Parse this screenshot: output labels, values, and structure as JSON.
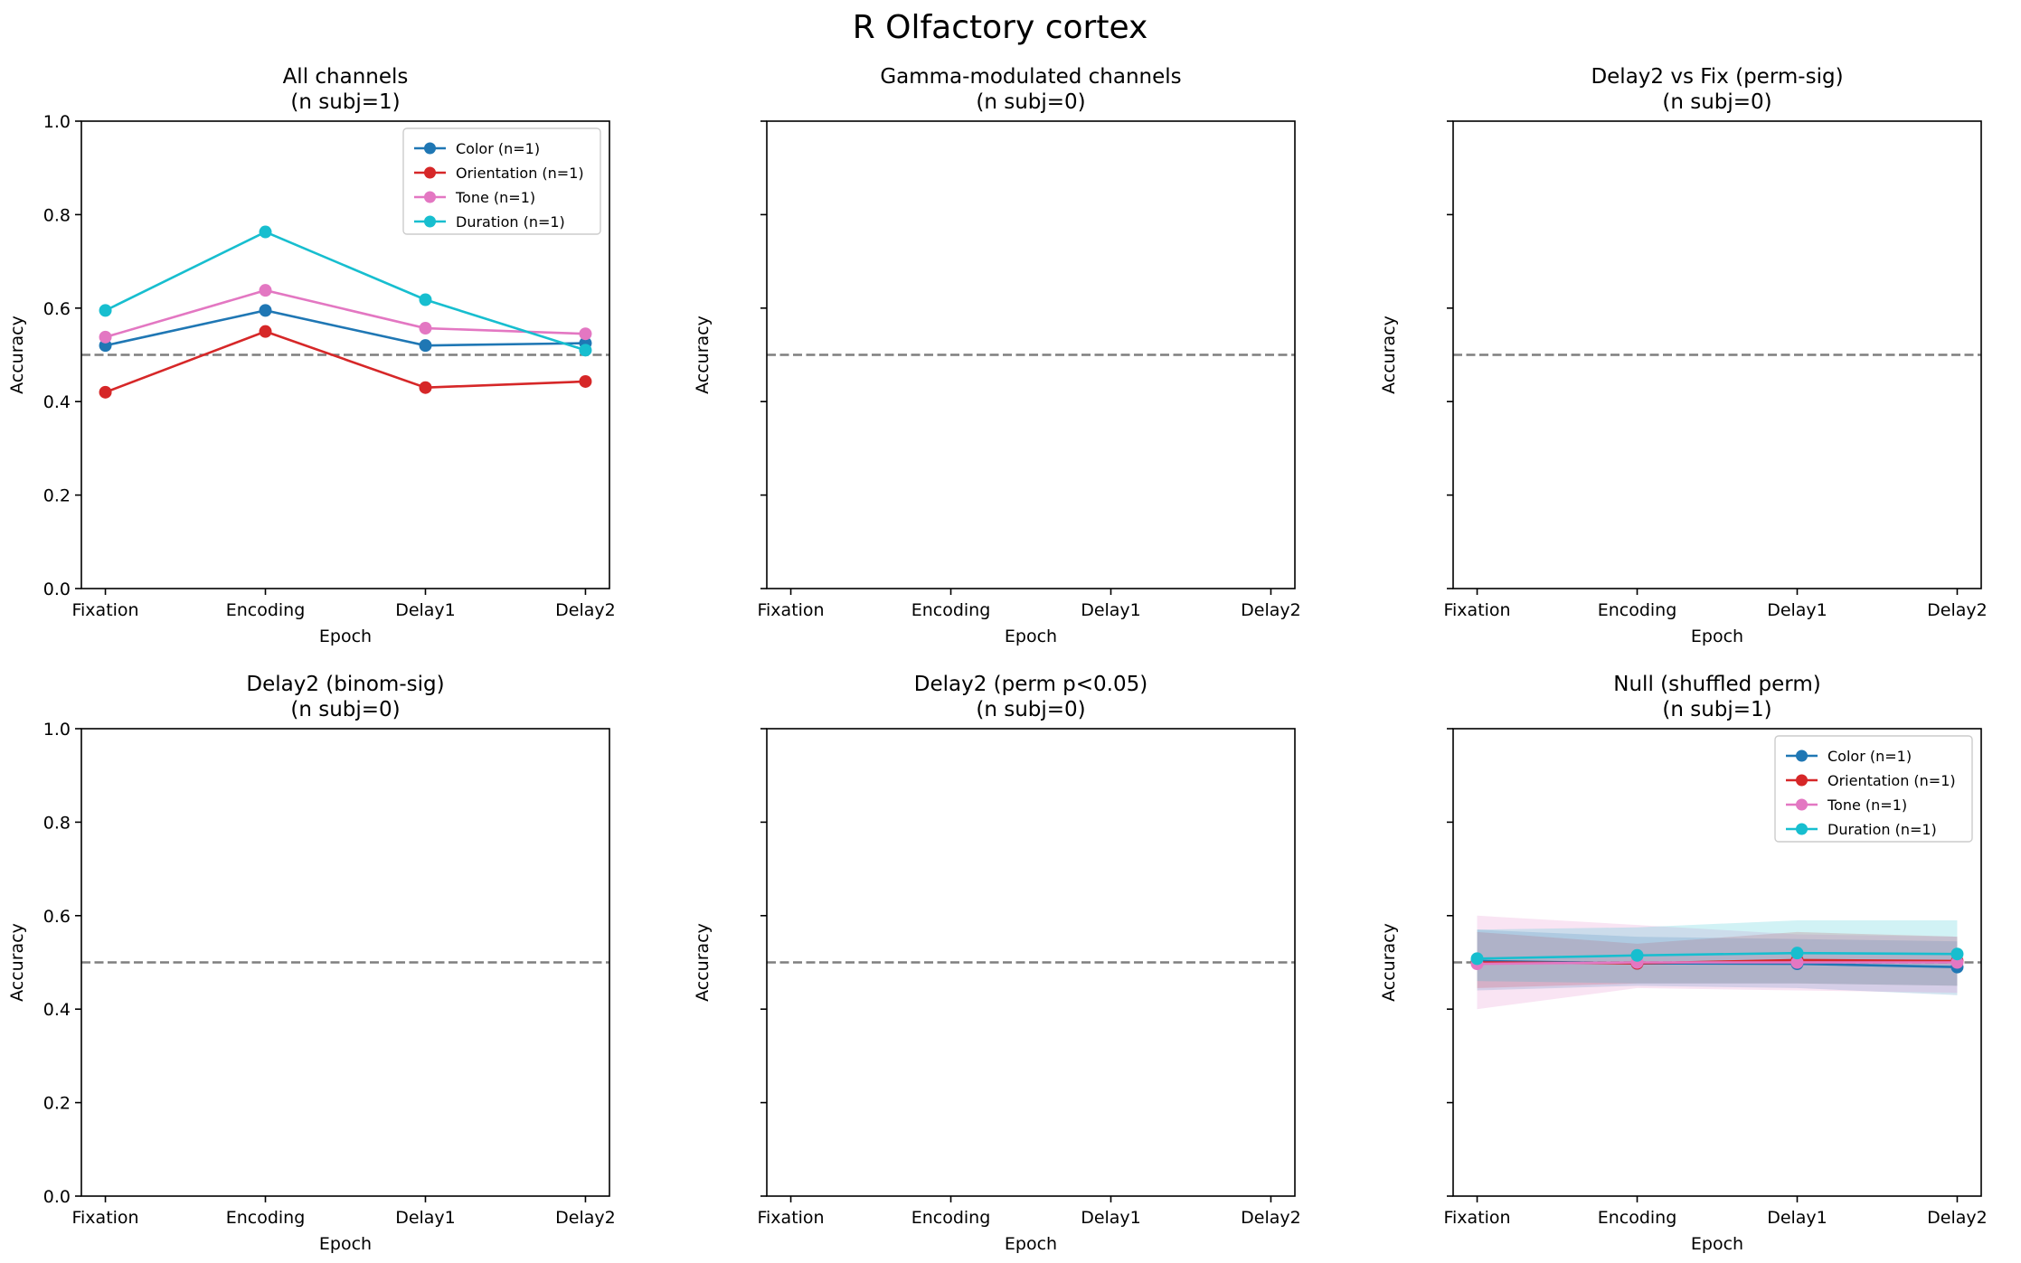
{
  "figure": {
    "title": "R Olfactory cortex"
  },
  "chart_data": [
    {
      "type": "line",
      "title": "All channels",
      "subtitle": "(n subj=1)",
      "xlabel": "Epoch",
      "ylabel": "Accuracy",
      "categories": [
        "Fixation",
        "Encoding",
        "Delay1",
        "Delay2"
      ],
      "ylim": [
        0,
        1
      ],
      "yticks": [
        "0.0",
        "0.2",
        "0.4",
        "0.6",
        "0.8",
        "1.0"
      ],
      "show_ytick_labels": true,
      "chance": 0.5,
      "legend": "upper-right",
      "series": [
        {
          "name": "Color (n=1)",
          "color": "#1f77b4",
          "values": [
            0.52,
            0.595,
            0.52,
            0.525
          ]
        },
        {
          "name": "Orientation (n=1)",
          "color": "#d62728",
          "values": [
            0.42,
            0.55,
            0.43,
            0.443
          ]
        },
        {
          "name": "Tone (n=1)",
          "color": "#e377c2",
          "values": [
            0.538,
            0.638,
            0.557,
            0.545
          ]
        },
        {
          "name": "Duration (n=1)",
          "color": "#17becf",
          "values": [
            0.595,
            0.763,
            0.618,
            0.51
          ]
        }
      ]
    },
    {
      "type": "line",
      "title": "Gamma-modulated channels",
      "subtitle": "(n subj=0)",
      "xlabel": "Epoch",
      "ylabel": "Accuracy",
      "categories": [
        "Fixation",
        "Encoding",
        "Delay1",
        "Delay2"
      ],
      "ylim": [
        0,
        1
      ],
      "yticks": [
        "0.0",
        "0.2",
        "0.4",
        "0.6",
        "0.8",
        "1.0"
      ],
      "show_ytick_labels": false,
      "chance": 0.5,
      "series": []
    },
    {
      "type": "line",
      "title": "Delay2 vs Fix (perm-sig)",
      "subtitle": "(n subj=0)",
      "xlabel": "Epoch",
      "ylabel": "Accuracy",
      "categories": [
        "Fixation",
        "Encoding",
        "Delay1",
        "Delay2"
      ],
      "ylim": [
        0,
        1
      ],
      "yticks": [
        "0.0",
        "0.2",
        "0.4",
        "0.6",
        "0.8",
        "1.0"
      ],
      "show_ytick_labels": false,
      "chance": 0.5,
      "series": []
    },
    {
      "type": "line",
      "title": "Delay2 (binom-sig)",
      "subtitle": "(n subj=0)",
      "xlabel": "Epoch",
      "ylabel": "Accuracy",
      "categories": [
        "Fixation",
        "Encoding",
        "Delay1",
        "Delay2"
      ],
      "ylim": [
        0,
        1
      ],
      "yticks": [
        "0.0",
        "0.2",
        "0.4",
        "0.6",
        "0.8",
        "1.0"
      ],
      "show_ytick_labels": true,
      "chance": 0.5,
      "series": []
    },
    {
      "type": "line",
      "title": "Delay2 (perm p<0.05)",
      "subtitle": "(n subj=0)",
      "xlabel": "Epoch",
      "ylabel": "Accuracy",
      "categories": [
        "Fixation",
        "Encoding",
        "Delay1",
        "Delay2"
      ],
      "ylim": [
        0,
        1
      ],
      "yticks": [
        "0.0",
        "0.2",
        "0.4",
        "0.6",
        "0.8",
        "1.0"
      ],
      "show_ytick_labels": false,
      "chance": 0.5,
      "series": []
    },
    {
      "type": "line",
      "title": "Null (shuffled perm)",
      "subtitle": "(n subj=1)",
      "xlabel": "Epoch",
      "ylabel": "Accuracy",
      "categories": [
        "Fixation",
        "Encoding",
        "Delay1",
        "Delay2"
      ],
      "ylim": [
        0,
        1
      ],
      "yticks": [
        "0.0",
        "0.2",
        "0.4",
        "0.6",
        "0.8",
        "1.0"
      ],
      "show_ytick_labels": false,
      "chance": 0.5,
      "legend": "upper-right",
      "series": [
        {
          "name": "Color (n=1)",
          "color": "#1f77b4",
          "values": [
            0.503,
            0.498,
            0.497,
            0.49
          ],
          "band_lower": [
            0.44,
            0.45,
            0.445,
            0.43
          ],
          "band_upper": [
            0.57,
            0.555,
            0.55,
            0.545
          ]
        },
        {
          "name": "Orientation (n=1)",
          "color": "#d62728",
          "values": [
            0.5,
            0.498,
            0.505,
            0.503
          ],
          "band_lower": [
            0.445,
            0.455,
            0.455,
            0.45
          ],
          "band_upper": [
            0.565,
            0.54,
            0.565,
            0.555
          ]
        },
        {
          "name": "Tone (n=1)",
          "color": "#e377c2",
          "values": [
            0.497,
            0.5,
            0.5,
            0.5
          ],
          "band_lower": [
            0.4,
            0.445,
            0.44,
            0.435
          ],
          "band_upper": [
            0.6,
            0.58,
            0.56,
            0.555
          ]
        },
        {
          "name": "Duration (n=1)",
          "color": "#17becf",
          "values": [
            0.508,
            0.515,
            0.52,
            0.518
          ],
          "band_lower": [
            0.46,
            0.455,
            0.455,
            0.45
          ],
          "band_upper": [
            0.57,
            0.575,
            0.59,
            0.59
          ]
        }
      ]
    }
  ]
}
